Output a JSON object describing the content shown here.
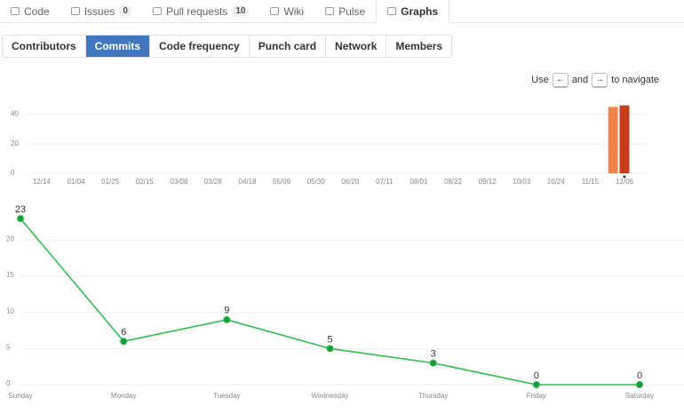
{
  "tabs": [
    {
      "label": "Code"
    },
    {
      "label": "Issues",
      "count": 0
    },
    {
      "label": "Pull requests",
      "count": 10
    },
    {
      "label": "Wiki"
    },
    {
      "label": "Pulse"
    },
    {
      "label": "Graphs"
    }
  ],
  "active_tab": "Graphs",
  "subtabs": [
    "Contributors",
    "Commits",
    "Code frequency",
    "Punch card",
    "Network",
    "Members"
  ],
  "active_subtab": "Commits",
  "hint": {
    "before": "Use",
    "key_left": "←",
    "middle": "and",
    "key_right": "→",
    "after": "to navigate"
  },
  "chart_data": [
    {
      "type": "bar",
      "categories": [
        "12/14",
        null,
        null,
        "01/04",
        null,
        null,
        "01/25",
        null,
        null,
        "02/15",
        null,
        null,
        "03/08",
        null,
        null,
        "03/28",
        null,
        null,
        "04/18",
        null,
        null,
        "05/09",
        null,
        null,
        "05/30",
        null,
        null,
        "06/20",
        null,
        null,
        "07/11",
        null,
        null,
        "08/01",
        null,
        null,
        "08/22",
        null,
        null,
        "09/12",
        null,
        null,
        "10/03",
        null,
        null,
        "10/24",
        null,
        null,
        "11/15",
        null,
        null,
        "12/06"
      ],
      "values": [
        0,
        0,
        0,
        0,
        0,
        0,
        0,
        0,
        0,
        0,
        0,
        0,
        0,
        0,
        0,
        0,
        0,
        0,
        0,
        0,
        0,
        0,
        0,
        0,
        0,
        0,
        0,
        0,
        0,
        0,
        0,
        0,
        0,
        0,
        0,
        0,
        0,
        0,
        0,
        0,
        0,
        0,
        0,
        0,
        0,
        0,
        0,
        0,
        0,
        0,
        45,
        46
      ],
      "color": "#f1834c",
      "selected_category": "12/06",
      "selected_color": "#c63c1a",
      "ylim": [
        0,
        50
      ],
      "yticks": [
        0,
        20,
        40
      ],
      "grid": true
    },
    {
      "type": "line",
      "categories": [
        "Sunday",
        "Monday",
        "Tuesday",
        "Wednesday",
        "Thursday",
        "Friday",
        "Saturday"
      ],
      "values": [
        23,
        6,
        9,
        5,
        3,
        0,
        0
      ],
      "color": "#2cbe4e",
      "point_color": "#1a9a3a",
      "ylim": [
        0,
        23
      ],
      "yticks": [
        0,
        5,
        10,
        15,
        20
      ],
      "grid": true
    }
  ]
}
